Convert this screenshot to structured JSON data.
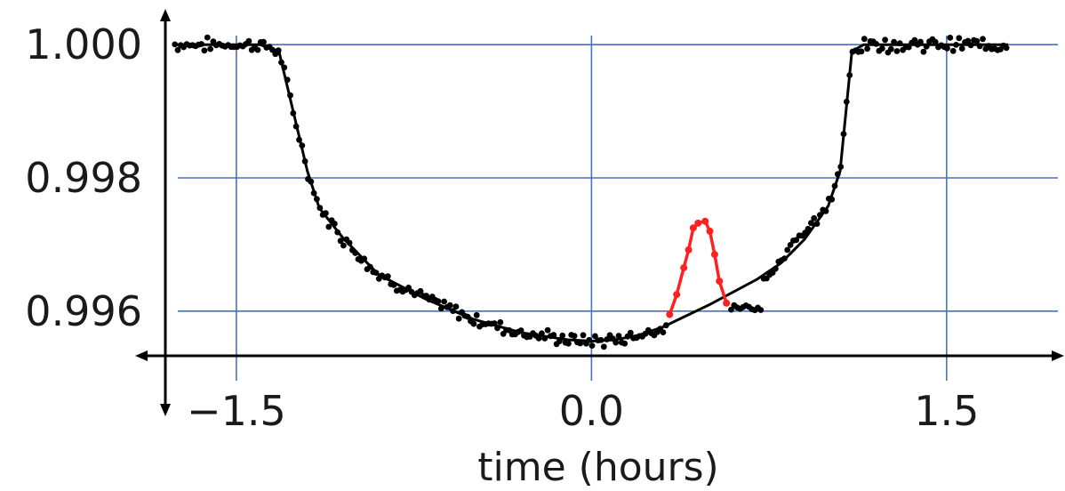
{
  "chart_data": {
    "type": "scatter",
    "title": "",
    "xlabel": "time (hours)",
    "ylabel": "",
    "xlim": [
      -1.8,
      2.0
    ],
    "ylim": [
      0.99533,
      1.00067
    ],
    "x_ticks": [
      -1.5,
      0.0,
      1.5
    ],
    "x_tick_labels": [
      "−1.5",
      "0.0",
      "1.5"
    ],
    "y_ticks": [
      0.996,
      0.998,
      1.0
    ],
    "y_tick_labels": [
      "0.996",
      "0.998",
      "1.000"
    ],
    "grid": true,
    "colors": {
      "grid": "#4a72b8",
      "data": "#000000",
      "model": "#000000",
      "anomaly": "#ff2020",
      "axis": "#000000"
    },
    "series": [
      {
        "kind": "model",
        "x": [
          -1.76,
          -1.4,
          -1.32,
          -1.2,
          -1.15,
          -1.05,
          -0.9,
          -0.7,
          -0.5,
          -0.3,
          -0.1,
          0.0,
          0.1,
          0.2,
          0.3,
          0.5,
          0.7,
          0.8,
          0.9,
          1.0,
          1.05,
          1.1,
          1.15,
          1.2,
          1.3,
          1.76
        ],
        "y": [
          1.0,
          1.0,
          0.9999,
          0.9981,
          0.99755,
          0.9971,
          0.99655,
          0.99618,
          0.99588,
          0.99568,
          0.99557,
          0.99555,
          0.99557,
          0.99564,
          0.99576,
          0.9961,
          0.99648,
          0.99672,
          0.99708,
          0.99758,
          0.9981,
          0.9999,
          1.0,
          1.0,
          1.0,
          1.0
        ]
      },
      {
        "kind": "anomaly",
        "x": [
          0.33,
          0.36,
          0.39,
          0.41,
          0.43,
          0.45,
          0.48,
          0.5,
          0.52,
          0.54,
          0.57
        ],
        "y": [
          0.99595,
          0.99625,
          0.99665,
          0.99692,
          0.99725,
          0.99732,
          0.99735,
          0.9972,
          0.99685,
          0.99645,
          0.99612
        ]
      }
    ]
  }
}
